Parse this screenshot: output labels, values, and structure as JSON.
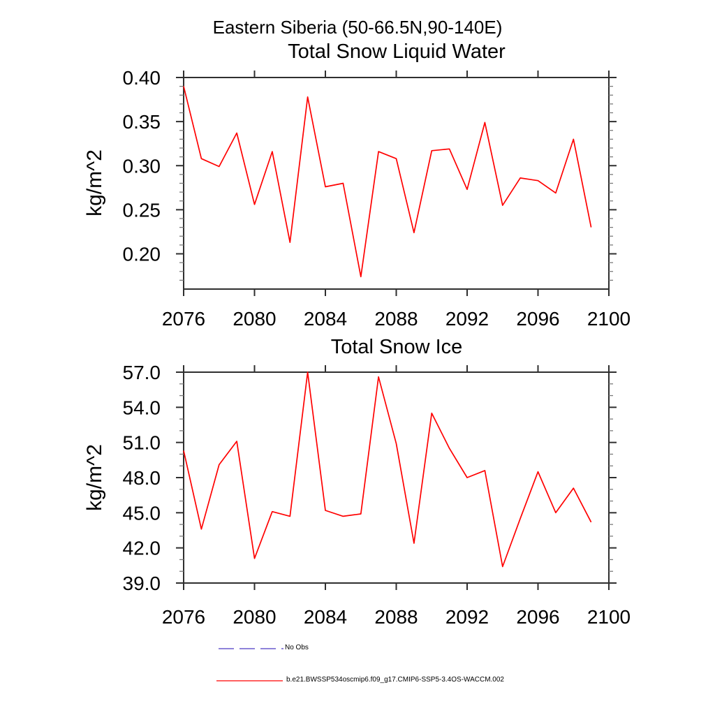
{
  "page_title": "Eastern Siberia (50-66.5N,90-140E)",
  "colors": {
    "axis": "#2f2f2f",
    "major_tick": "#2f2f2f",
    "minor_tick": "#7a7a7a",
    "text": "#000000",
    "series_red": "#ff0000",
    "no_obs_blue": "#6a5acd",
    "background": "#ffffff"
  },
  "legend": {
    "items": [
      {
        "label": "No Obs",
        "style": "dashed",
        "color": "#6a5acd"
      },
      {
        "label": "b.e21.BWSSP534oscmip6.f09_g17.CMIP6-SSP5-3.4OS-WACCM.002",
        "style": "solid",
        "color": "#ff0000"
      }
    ]
  },
  "chart_data": [
    {
      "type": "line",
      "title": "Total Snow Liquid Water",
      "xlabel": "",
      "ylabel": "kg/m^2",
      "xlim": [
        2076,
        2100
      ],
      "ylim": [
        0.16,
        0.4
      ],
      "grid": false,
      "legend_position": "below-figure",
      "xticks": [
        2076,
        2080,
        2084,
        2088,
        2092,
        2096,
        2100
      ],
      "xtick_labels": [
        "2076",
        "2080",
        "2084",
        "2088",
        "2092",
        "2096",
        "2100"
      ],
      "yticks": [
        0.2,
        0.25,
        0.3,
        0.35,
        0.4
      ],
      "ytick_labels": [
        "0.20",
        "0.25",
        "0.30",
        "0.35",
        "0.40"
      ],
      "ytick_minor_step": 0.01,
      "x": [
        2076,
        2077,
        2078,
        2079,
        2080,
        2081,
        2082,
        2083,
        2084,
        2085,
        2086,
        2087,
        2088,
        2089,
        2090,
        2091,
        2092,
        2093,
        2094,
        2095,
        2096,
        2097,
        2098,
        2099
      ],
      "series": [
        {
          "name": "b.e21.BWSSP534oscmip6.f09_g17.CMIP6-SSP5-3.4OS-WACCM.002",
          "color": "#ff0000",
          "values": [
            0.39,
            0.308,
            0.299,
            0.337,
            0.256,
            0.316,
            0.213,
            0.378,
            0.276,
            0.28,
            0.174,
            0.316,
            0.308,
            0.224,
            0.317,
            0.319,
            0.273,
            0.349,
            0.255,
            0.286,
            0.283,
            0.269,
            0.33,
            0.23
          ]
        }
      ]
    },
    {
      "type": "line",
      "title": "Total Snow Ice",
      "xlabel": "",
      "ylabel": "kg/m^2",
      "xlim": [
        2076,
        2100
      ],
      "ylim": [
        39.0,
        57.0
      ],
      "grid": false,
      "legend_position": "below-figure",
      "xticks": [
        2076,
        2080,
        2084,
        2088,
        2092,
        2096,
        2100
      ],
      "xtick_labels": [
        "2076",
        "2080",
        "2084",
        "2088",
        "2092",
        "2096",
        "2100"
      ],
      "yticks": [
        39.0,
        42.0,
        45.0,
        48.0,
        51.0,
        54.0,
        57.0
      ],
      "ytick_labels": [
        "39.0",
        "42.0",
        "45.0",
        "48.0",
        "51.0",
        "54.0",
        "57.0"
      ],
      "ytick_minor_step": 1.0,
      "x": [
        2076,
        2077,
        2078,
        2079,
        2080,
        2081,
        2082,
        2083,
        2084,
        2085,
        2086,
        2087,
        2088,
        2089,
        2090,
        2091,
        2092,
        2093,
        2094,
        2095,
        2096,
        2097,
        2098,
        2099
      ],
      "series": [
        {
          "name": "b.e21.BWSSP534oscmip6.f09_g17.CMIP6-SSP5-3.4OS-WACCM.002",
          "color": "#ff0000",
          "values": [
            50.3,
            43.6,
            49.1,
            51.1,
            41.1,
            45.1,
            44.7,
            57.0,
            45.2,
            44.7,
            44.9,
            56.6,
            50.9,
            42.4,
            53.5,
            50.5,
            48.0,
            48.6,
            40.4,
            44.5,
            48.5,
            45.0,
            47.1,
            44.2
          ]
        }
      ]
    }
  ]
}
